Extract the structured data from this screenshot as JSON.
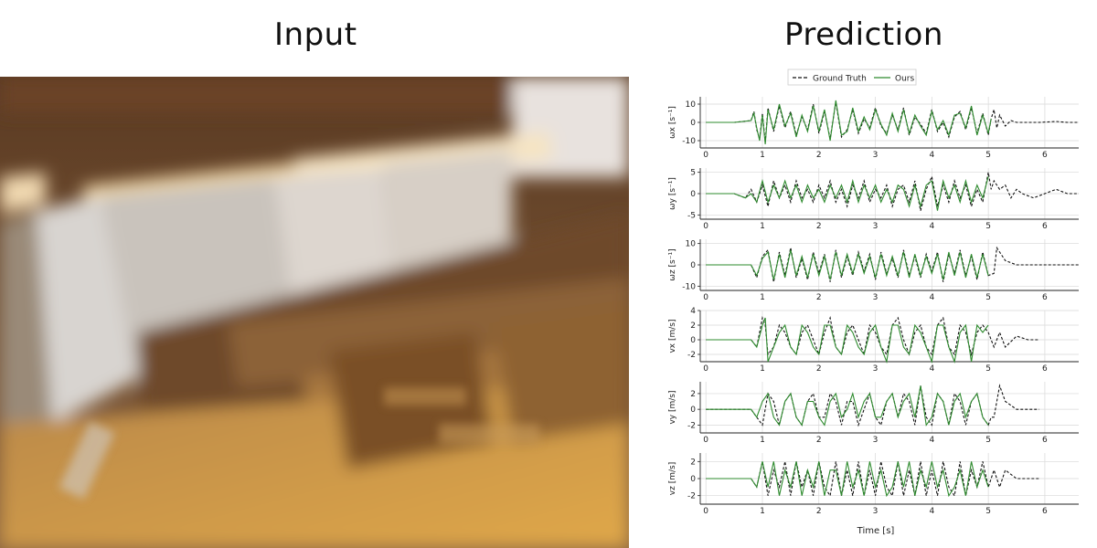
{
  "header": {
    "left_title": "Input",
    "right_title": "Prediction"
  },
  "legend": {
    "entries": [
      {
        "label": "Ground Truth",
        "style": "dashed",
        "color": "#111111"
      },
      {
        "label": "Ours",
        "style": "solid",
        "color": "#2e8b2e"
      }
    ],
    "placement": "top-center"
  },
  "colors": {
    "ground_truth": "#111111",
    "prediction": "#2e8b2e",
    "grid": "#d8d8d8"
  },
  "chart_data": [
    {
      "type": "line",
      "ylabel": "ωx [s⁻¹]",
      "yticks": [
        10,
        0,
        -10
      ],
      "ylim": [
        -14,
        14
      ],
      "xticks": [
        0,
        1,
        2,
        3,
        4,
        5,
        6
      ],
      "xlim": [
        -0.1,
        6.6
      ],
      "gt_x": [
        0,
        0.5,
        0.8,
        0.85,
        0.9,
        0.95,
        1.0,
        1.05,
        1.1,
        1.2,
        1.3,
        1.4,
        1.5,
        1.6,
        1.7,
        1.8,
        1.9,
        2.0,
        2.1,
        2.2,
        2.3,
        2.4,
        2.5,
        2.6,
        2.7,
        2.8,
        2.9,
        3.0,
        3.1,
        3.2,
        3.3,
        3.4,
        3.5,
        3.6,
        3.7,
        3.8,
        3.9,
        4.0,
        4.1,
        4.2,
        4.3,
        4.4,
        4.5,
        4.6,
        4.7,
        4.8,
        4.9,
        5.0,
        5.05,
        5.1,
        5.15,
        5.2,
        5.3,
        5.4,
        5.5,
        5.7,
        5.9,
        6.2,
        6.4,
        6.6
      ],
      "gt_y": [
        0,
        0,
        1,
        6,
        -4,
        -9,
        5,
        -11,
        8,
        -5,
        9,
        -3,
        6,
        -7,
        3,
        -4,
        10,
        -6,
        6,
        -9,
        11,
        -8,
        -4,
        7,
        -6,
        2,
        -3,
        8,
        -2,
        -6,
        4,
        -4,
        8,
        -7,
        3,
        -1,
        -6,
        7,
        -5,
        0,
        -8,
        3,
        6,
        -4,
        8,
        -6,
        5,
        -7,
        2,
        7,
        -3,
        4,
        -2,
        1,
        0,
        0,
        0,
        0.5,
        0,
        0
      ],
      "pred_x": [
        0,
        0.5,
        0.8,
        0.85,
        0.9,
        0.95,
        1.0,
        1.05,
        1.1,
        1.2,
        1.3,
        1.4,
        1.5,
        1.6,
        1.7,
        1.8,
        1.9,
        2.0,
        2.1,
        2.2,
        2.3,
        2.4,
        2.5,
        2.6,
        2.7,
        2.8,
        2.9,
        3.0,
        3.1,
        3.2,
        3.3,
        3.4,
        3.5,
        3.6,
        3.7,
        3.8,
        3.9,
        4.0,
        4.1,
        4.2,
        4.3,
        4.4,
        4.5,
        4.6,
        4.7,
        4.8,
        4.9,
        5.0,
        5.05
      ],
      "pred_y": [
        0,
        0,
        1,
        5,
        -3,
        -10,
        4,
        -12,
        7,
        -4,
        10,
        -2,
        5,
        -8,
        4,
        -5,
        9,
        -5,
        7,
        -10,
        12,
        -7,
        -5,
        8,
        -5,
        3,
        -4,
        7,
        -1,
        -7,
        5,
        -5,
        7,
        -6,
        4,
        -2,
        -7,
        6,
        -4,
        1,
        -7,
        4,
        5,
        -3,
        9,
        -7,
        4,
        -6,
        2
      ]
    },
    {
      "type": "line",
      "ylabel": "ωy [s⁻¹]",
      "yticks": [
        5,
        0,
        -5
      ],
      "ylim": [
        -6,
        6
      ],
      "xticks": [
        0,
        1,
        2,
        3,
        4,
        5,
        6
      ],
      "xlim": [
        -0.1,
        6.6
      ],
      "gt_x": [
        0,
        0.5,
        0.7,
        0.8,
        0.9,
        1.0,
        1.1,
        1.2,
        1.3,
        1.4,
        1.5,
        1.6,
        1.7,
        1.8,
        1.9,
        2.0,
        2.1,
        2.2,
        2.3,
        2.4,
        2.5,
        2.6,
        2.7,
        2.8,
        2.9,
        3.0,
        3.1,
        3.2,
        3.3,
        3.4,
        3.5,
        3.6,
        3.7,
        3.8,
        3.9,
        4.0,
        4.1,
        4.2,
        4.3,
        4.4,
        4.5,
        4.6,
        4.7,
        4.8,
        4.9,
        5.0,
        5.05,
        5.1,
        5.2,
        5.3,
        5.4,
        5.5,
        5.6,
        5.8,
        6.0,
        6.2,
        6.4,
        6.6
      ],
      "gt_y": [
        0,
        0,
        -1,
        1,
        -2,
        2,
        -3,
        3,
        -1,
        2,
        -2,
        3,
        -1,
        1,
        -2,
        2,
        -1,
        3,
        -2,
        1,
        -3,
        2,
        -1,
        3,
        -2,
        1,
        -1,
        2,
        -3,
        1,
        2,
        -2,
        3,
        -4,
        1,
        4,
        -3,
        2,
        -2,
        3,
        -1,
        2,
        -3,
        1,
        -2,
        5,
        1,
        3,
        1,
        2,
        -1,
        1,
        0,
        -1,
        0,
        1,
        0,
        0
      ],
      "pred_x": [
        0,
        0.5,
        0.7,
        0.8,
        0.9,
        1.0,
        1.1,
        1.2,
        1.3,
        1.4,
        1.5,
        1.6,
        1.7,
        1.8,
        1.9,
        2.0,
        2.1,
        2.2,
        2.3,
        2.4,
        2.5,
        2.6,
        2.7,
        2.8,
        2.9,
        3.0,
        3.1,
        3.2,
        3.3,
        3.4,
        3.5,
        3.6,
        3.7,
        3.8,
        3.9,
        4.0,
        4.1,
        4.2,
        4.3,
        4.4,
        4.5,
        4.6,
        4.7,
        4.8,
        4.9,
        5.0
      ],
      "pred_y": [
        0,
        0,
        -1,
        0,
        -2,
        3,
        -2,
        2,
        -1,
        3,
        -1,
        2,
        -2,
        2,
        -1,
        1,
        -2,
        2,
        -1,
        2,
        -2,
        3,
        -2,
        2,
        -1,
        2,
        -2,
        1,
        -2,
        2,
        1,
        -3,
        2,
        -3,
        2,
        3,
        -4,
        3,
        -1,
        2,
        -2,
        3,
        -2,
        2,
        -1,
        4
      ]
    },
    {
      "type": "line",
      "ylabel": "ωz [s⁻¹]",
      "yticks": [
        10,
        0,
        -10
      ],
      "ylim": [
        -12,
        12
      ],
      "xticks": [
        0,
        1,
        2,
        3,
        4,
        5,
        6
      ],
      "xlim": [
        -0.1,
        6.6
      ],
      "gt_x": [
        0,
        0.5,
        0.8,
        0.9,
        1.0,
        1.1,
        1.2,
        1.3,
        1.4,
        1.5,
        1.6,
        1.7,
        1.8,
        1.9,
        2.0,
        2.1,
        2.2,
        2.3,
        2.4,
        2.5,
        2.6,
        2.7,
        2.8,
        2.9,
        3.0,
        3.1,
        3.2,
        3.3,
        3.4,
        3.5,
        3.6,
        3.7,
        3.8,
        3.9,
        4.0,
        4.1,
        4.2,
        4.3,
        4.4,
        4.5,
        4.6,
        4.7,
        4.8,
        4.9,
        5.0,
        5.1,
        5.15,
        5.2,
        5.3,
        5.5,
        5.8,
        6.2,
        6.6
      ],
      "gt_y": [
        0,
        0,
        0,
        -6,
        4,
        7,
        -8,
        6,
        -5,
        8,
        -6,
        3,
        -7,
        6,
        -4,
        5,
        -8,
        7,
        -6,
        4,
        -5,
        6,
        -3,
        5,
        -7,
        6,
        -4,
        3,
        -6,
        7,
        -5,
        4,
        -6,
        5,
        -3,
        6,
        -8,
        5,
        -4,
        7,
        -5,
        4,
        -7,
        6,
        -5,
        -4,
        8,
        6,
        2,
        0,
        0,
        0,
        0
      ],
      "pred_x": [
        0,
        0.5,
        0.8,
        0.9,
        1.0,
        1.1,
        1.2,
        1.3,
        1.4,
        1.5,
        1.6,
        1.7,
        1.8,
        1.9,
        2.0,
        2.1,
        2.2,
        2.3,
        2.4,
        2.5,
        2.6,
        2.7,
        2.8,
        2.9,
        3.0,
        3.1,
        3.2,
        3.3,
        3.4,
        3.5,
        3.6,
        3.7,
        3.8,
        3.9,
        4.0,
        4.1,
        4.2,
        4.3,
        4.4,
        4.5,
        4.6,
        4.7,
        4.8,
        4.9,
        5.0
      ],
      "pred_y": [
        0,
        0,
        0,
        -5,
        3,
        6,
        -7,
        5,
        -6,
        7,
        -5,
        4,
        -6,
        5,
        -5,
        4,
        -7,
        6,
        -5,
        5,
        -4,
        5,
        -4,
        4,
        -6,
        5,
        -5,
        4,
        -5,
        6,
        -6,
        5,
        -5,
        4,
        -4,
        5,
        -7,
        6,
        -5,
        6,
        -6,
        5,
        -6,
        5,
        -5
      ]
    },
    {
      "type": "line",
      "ylabel": "vx [m/s]",
      "yticks": [
        4,
        2,
        0,
        -2
      ],
      "ylim": [
        -3,
        4
      ],
      "xticks": [
        0,
        1,
        2,
        3,
        4,
        5,
        6
      ],
      "xlim": [
        -0.1,
        6.6
      ],
      "gt_x": [
        0,
        0.5,
        0.8,
        0.9,
        1.0,
        1.05,
        1.1,
        1.2,
        1.3,
        1.4,
        1.5,
        1.6,
        1.7,
        1.8,
        1.9,
        2.0,
        2.1,
        2.2,
        2.3,
        2.4,
        2.5,
        2.6,
        2.7,
        2.8,
        2.9,
        3.0,
        3.1,
        3.2,
        3.3,
        3.4,
        3.5,
        3.6,
        3.7,
        3.8,
        3.9,
        4.0,
        4.1,
        4.2,
        4.3,
        4.4,
        4.5,
        4.6,
        4.7,
        4.8,
        4.9,
        5.0,
        5.1,
        5.2,
        5.3,
        5.5,
        5.7,
        5.9
      ],
      "gt_y": [
        0,
        0,
        0,
        -1,
        3,
        2,
        -2,
        -1,
        2,
        1,
        -1,
        -2,
        1,
        2,
        0,
        -2,
        1,
        3,
        -1,
        -2,
        1,
        2,
        0,
        -2,
        2,
        1,
        -1,
        -2,
        2,
        3,
        0,
        -2,
        1,
        2,
        -1,
        -2,
        2,
        3,
        -1,
        -2,
        2,
        1,
        -2,
        1,
        2,
        1,
        -1,
        1,
        -1,
        0.5,
        0,
        0
      ],
      "pred_x": [
        0,
        0.5,
        0.8,
        0.9,
        1.0,
        1.05,
        1.1,
        1.2,
        1.3,
        1.4,
        1.5,
        1.6,
        1.7,
        1.8,
        1.9,
        2.0,
        2.1,
        2.2,
        2.3,
        2.4,
        2.5,
        2.6,
        2.7,
        2.8,
        2.9,
        3.0,
        3.1,
        3.2,
        3.3,
        3.4,
        3.5,
        3.6,
        3.7,
        3.8,
        3.9,
        4.0,
        4.1,
        4.2,
        4.3,
        4.4,
        4.5,
        4.6,
        4.7,
        4.8,
        4.9,
        5.0
      ],
      "pred_y": [
        0,
        0,
        0,
        -1,
        2,
        3,
        -3,
        -1,
        1,
        2,
        -1,
        -2,
        2,
        1,
        -1,
        -2,
        2,
        2,
        -1,
        -2,
        2,
        1,
        -1,
        -2,
        1,
        2,
        -1,
        -3,
        2,
        2,
        -1,
        -2,
        2,
        1,
        -1,
        -3,
        2,
        2,
        -1,
        -3,
        1,
        2,
        -3,
        2,
        1,
        2
      ]
    },
    {
      "type": "line",
      "ylabel": "vy [m/s]",
      "yticks": [
        2,
        0,
        -2
      ],
      "ylim": [
        -3,
        3.5
      ],
      "xticks": [
        0,
        1,
        2,
        3,
        4,
        5,
        6
      ],
      "xlim": [
        -0.1,
        6.6
      ],
      "gt_x": [
        0,
        0.5,
        0.8,
        0.9,
        1.0,
        1.1,
        1.2,
        1.3,
        1.4,
        1.5,
        1.6,
        1.7,
        1.8,
        1.9,
        2.0,
        2.1,
        2.2,
        2.3,
        2.4,
        2.5,
        2.6,
        2.7,
        2.8,
        2.9,
        3.0,
        3.1,
        3.2,
        3.3,
        3.4,
        3.5,
        3.6,
        3.7,
        3.8,
        3.9,
        4.0,
        4.1,
        4.2,
        4.3,
        4.4,
        4.5,
        4.6,
        4.7,
        4.8,
        4.9,
        5.0,
        5.05,
        5.1,
        5.2,
        5.3,
        5.5,
        5.7,
        5.9
      ],
      "gt_y": [
        0,
        0,
        0,
        -1,
        -2,
        2,
        1,
        -2,
        1,
        2,
        -1,
        -2,
        1,
        2,
        -1,
        -1,
        2,
        1,
        -2,
        1,
        1,
        -2,
        0,
        2,
        -1,
        -2,
        1,
        2,
        -1,
        2,
        1,
        -2,
        3,
        -1,
        -2,
        2,
        1,
        -2,
        2,
        1,
        -2,
        1,
        2,
        -1,
        -2,
        -1,
        -1,
        3,
        1,
        0,
        0,
        0
      ],
      "pred_x": [
        0,
        0.5,
        0.8,
        0.9,
        1.0,
        1.1,
        1.2,
        1.3,
        1.4,
        1.5,
        1.6,
        1.7,
        1.8,
        1.9,
        2.0,
        2.1,
        2.2,
        2.3,
        2.4,
        2.5,
        2.6,
        2.7,
        2.8,
        2.9,
        3.0,
        3.1,
        3.2,
        3.3,
        3.4,
        3.5,
        3.6,
        3.7,
        3.8,
        3.9,
        4.0,
        4.1,
        4.2,
        4.3,
        4.4,
        4.5,
        4.6,
        4.7,
        4.8,
        4.9,
        5.0
      ],
      "pred_y": [
        0,
        0,
        0,
        -1,
        1,
        2,
        -1,
        -2,
        1,
        2,
        -1,
        -2,
        1,
        1,
        -1,
        -2,
        1,
        2,
        -1,
        0,
        2,
        -1,
        1,
        2,
        -1,
        -1,
        1,
        2,
        -1,
        1,
        2,
        -1,
        3,
        -2,
        -1,
        2,
        1,
        -2,
        1,
        2,
        -1,
        1,
        2,
        -1,
        -2
      ]
    },
    {
      "type": "line",
      "ylabel": "vz [m/s]",
      "yticks": [
        2,
        0,
        -2
      ],
      "ylim": [
        -3,
        3
      ],
      "xticks": [
        0,
        1,
        2,
        3,
        4,
        5,
        6
      ],
      "xlim": [
        -0.1,
        6.6
      ],
      "gt_x": [
        0,
        0.5,
        0.8,
        0.9,
        1.0,
        1.1,
        1.2,
        1.3,
        1.4,
        1.5,
        1.6,
        1.7,
        1.8,
        1.9,
        2.0,
        2.1,
        2.2,
        2.3,
        2.4,
        2.5,
        2.6,
        2.7,
        2.8,
        2.9,
        3.0,
        3.1,
        3.2,
        3.3,
        3.4,
        3.5,
        3.6,
        3.7,
        3.8,
        3.9,
        4.0,
        4.1,
        4.2,
        4.3,
        4.4,
        4.5,
        4.6,
        4.7,
        4.8,
        4.9,
        5.0,
        5.1,
        5.2,
        5.3,
        5.5,
        5.7,
        5.9
      ],
      "gt_y": [
        0,
        0,
        0,
        -1,
        2,
        -2,
        1,
        -1,
        2,
        -2,
        2,
        -1,
        1,
        -2,
        2,
        -1,
        -2,
        2,
        -2,
        1,
        -2,
        2,
        -2,
        1,
        -2,
        2,
        -1,
        -2,
        2,
        -2,
        1,
        -2,
        2,
        -2,
        1,
        -2,
        2,
        -1,
        -2,
        2,
        -2,
        1,
        -1,
        2,
        -1,
        1,
        -1,
        1,
        0,
        0,
        0
      ],
      "pred_x": [
        0,
        0.5,
        0.8,
        0.9,
        1.0,
        1.1,
        1.2,
        1.3,
        1.4,
        1.5,
        1.6,
        1.7,
        1.8,
        1.9,
        2.0,
        2.1,
        2.2,
        2.3,
        2.4,
        2.5,
        2.6,
        2.7,
        2.8,
        2.9,
        3.0,
        3.1,
        3.2,
        3.3,
        3.4,
        3.5,
        3.6,
        3.7,
        3.8,
        3.9,
        4.0,
        4.1,
        4.2,
        4.3,
        4.4,
        4.5,
        4.6,
        4.7,
        4.8,
        4.9,
        5.0
      ],
      "pred_y": [
        0,
        0,
        0,
        -1,
        2,
        -1,
        2,
        -2,
        1,
        -1,
        2,
        -2,
        1,
        -1,
        2,
        -2,
        1,
        1,
        -2,
        2,
        -1,
        1,
        -2,
        2,
        -1,
        1,
        -2,
        -1,
        2,
        -1,
        2,
        -2,
        1,
        -1,
        2,
        -1,
        1,
        -2,
        -1,
        1,
        -2,
        2,
        -1,
        1,
        -1
      ]
    }
  ],
  "x_axis_label": "Time [s]"
}
